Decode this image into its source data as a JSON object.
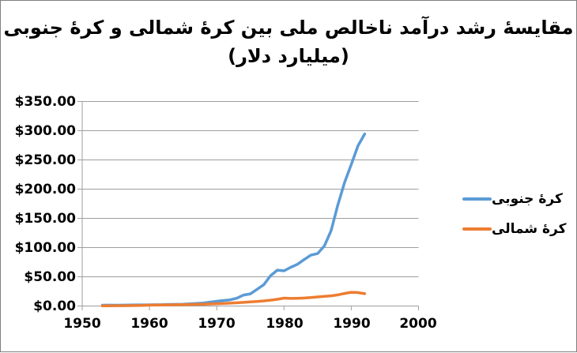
{
  "title": {
    "line1": "مقایسۀ رشد درآمد ناخالص ملی بین کرۀ شمالی و کرۀ جنوبی",
    "line2": "(میلیارد دلار)"
  },
  "legend": {
    "items": [
      {
        "label": "کرۀ جنوبی",
        "color": "#5B9BD5"
      },
      {
        "label": "کرۀ شمالی",
        "color": "#ED7D31"
      }
    ]
  },
  "axes": {
    "y_tick_labels": [
      "$350.00",
      "$300.00",
      "$250.00",
      "$200.00",
      "$150.00",
      "$100.00",
      "$50.00",
      "$0.00"
    ],
    "x_tick_labels": [
      "1950",
      "1960",
      "1970",
      "1980",
      "1990",
      "2000"
    ]
  },
  "colors": {
    "south_korea": "#5B9BD5",
    "north_korea": "#ED7D31",
    "gridline": "#9E9E9E",
    "text": "#000000",
    "border": "#7F7F7F"
  },
  "chart_data": {
    "type": "line",
    "title": "مقایسۀ رشد درآمد ناخالص ملی بین کرۀ شمالی و کرۀ جنوبی (میلیارد دلار)",
    "xlabel": "",
    "ylabel": "",
    "xlim": [
      1950,
      2000
    ],
    "ylim": [
      0,
      350
    ],
    "x_tick_step": 10,
    "y_tick_step": 50,
    "grid": true,
    "legend_position": "right",
    "x": [
      1953,
      1954,
      1955,
      1956,
      1957,
      1958,
      1959,
      1960,
      1961,
      1962,
      1963,
      1964,
      1965,
      1966,
      1967,
      1968,
      1969,
      1970,
      1971,
      1972,
      1973,
      1974,
      1975,
      1976,
      1977,
      1978,
      1979,
      1980,
      1981,
      1982,
      1983,
      1984,
      1985,
      1986,
      1987,
      1988,
      1989,
      1990,
      1991,
      1992
    ],
    "series": [
      {
        "name": "کرۀ جنوبی",
        "color": "#5B9BD5",
        "values": [
          1.3,
          1.5,
          1.4,
          1.5,
          1.7,
          1.9,
          1.9,
          2.0,
          2.1,
          2.3,
          2.7,
          2.9,
          3.0,
          3.7,
          4.3,
          5.2,
          6.6,
          8.1,
          9.5,
          10.6,
          13.4,
          18.8,
          20.8,
          28.6,
          36.6,
          51.9,
          61.4,
          60.3,
          66.2,
          71.3,
          79.5,
          87.0,
          89.7,
          102.8,
          128.9,
          172.8,
          211.2,
          242.2,
          274.2,
          294.5
        ]
      },
      {
        "name": "کرۀ شمالی",
        "color": "#ED7D31",
        "values": [
          0.4,
          0.4,
          0.5,
          0.6,
          0.7,
          0.8,
          0.9,
          1.5,
          1.6,
          1.8,
          2.0,
          2.2,
          2.4,
          2.6,
          2.8,
          3.1,
          3.5,
          3.9,
          4.4,
          4.9,
          5.5,
          6.2,
          7.0,
          7.8,
          8.8,
          10.0,
          11.5,
          13.5,
          13.0,
          13.2,
          13.6,
          14.5,
          15.5,
          16.5,
          17.5,
          19.0,
          21.5,
          23.5,
          23.0,
          21.1
        ]
      }
    ]
  }
}
